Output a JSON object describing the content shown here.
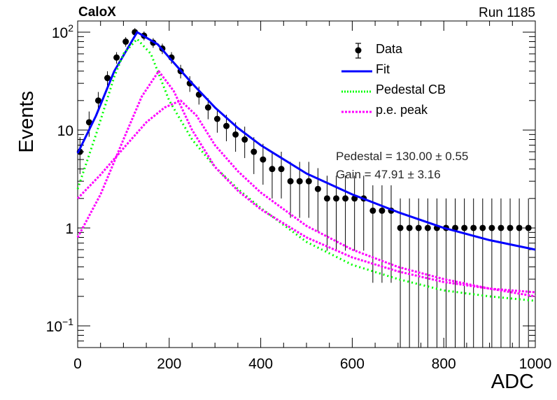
{
  "header": {
    "experiment": "CaloX",
    "run": "Run 1185"
  },
  "chart_data": {
    "type": "scatter",
    "xlabel": "ADC",
    "ylabel": "Events",
    "xlim": [
      0,
      1000
    ],
    "ylim": [
      0.06,
      130
    ],
    "log_y": true,
    "x_ticks": [
      0,
      200,
      400,
      600,
      800,
      1000
    ],
    "y_ticks": [
      {
        "value": 0.1,
        "mantissa": "10",
        "exponent": "−1"
      },
      {
        "value": 1,
        "mantissa": "1",
        "exponent": ""
      },
      {
        "value": 10,
        "mantissa": "10",
        "exponent": ""
      },
      {
        "value": 100,
        "mantissa": "10",
        "exponent": "2"
      }
    ],
    "legend_position": "top-right",
    "legend": [
      {
        "label": "Data",
        "style": "marker"
      },
      {
        "label": "Fit",
        "style": "solid",
        "color": "#0000ff"
      },
      {
        "label": "Pedestal CB",
        "style": "dotted",
        "color": "#00ff00"
      },
      {
        "label": "p.e. peak",
        "style": "dotted",
        "color": "#ff00ff"
      }
    ],
    "stats": [
      "Pedestal = 130.00 ± 0.55",
      "Gain = 47.91 ± 3.16"
    ],
    "data_points": {
      "x": [
        5,
        25,
        45,
        65,
        85,
        105,
        125,
        145,
        165,
        185,
        205,
        225,
        245,
        265,
        285,
        305,
        325,
        345,
        365,
        385,
        405,
        425,
        445,
        465,
        485,
        505,
        525,
        545,
        565,
        585,
        605,
        625,
        645,
        665,
        685,
        705,
        725,
        745,
        765,
        785,
        805,
        825,
        845,
        865,
        885,
        905,
        925,
        945,
        965,
        985
      ],
      "y": [
        6,
        12,
        20,
        34,
        55,
        80,
        100,
        92,
        78,
        68,
        55,
        40,
        30,
        23,
        17,
        13,
        11,
        9,
        8,
        6,
        5,
        4,
        4,
        3,
        3,
        3,
        2.5,
        2,
        2,
        2,
        2,
        2,
        1.5,
        1.5,
        1.5,
        1,
        1,
        1,
        1,
        1,
        1,
        1,
        1,
        1,
        1,
        1,
        1,
        1,
        1,
        1
      ]
    },
    "series": [
      {
        "name": "Fit",
        "color": "#0000ff",
        "x": [
          0,
          40,
          80,
          130,
          175,
          200,
          250,
          300,
          350,
          400,
          500,
          600,
          700,
          800,
          900,
          1000
        ],
        "y": [
          5.8,
          14,
          40,
          100,
          75,
          55,
          30,
          17,
          10.5,
          7,
          3.6,
          2.2,
          1.45,
          1.0,
          0.75,
          0.6
        ]
      },
      {
        "name": "Pedestal CB",
        "color": "#00ff00",
        "x": [
          0,
          40,
          80,
          100,
          130,
          160,
          200,
          250,
          300,
          350,
          400,
          500,
          600,
          700,
          800,
          900,
          1000
        ],
        "y": [
          2.5,
          9,
          35,
          60,
          85,
          60,
          20,
          8,
          4.2,
          2.5,
          1.6,
          0.72,
          0.42,
          0.3,
          0.23,
          0.2,
          0.18
        ]
      },
      {
        "name": "p.e. peak",
        "color": "#ff00ff",
        "x": [
          0,
          50,
          100,
          140,
          177,
          210,
          250,
          300,
          350,
          400,
          500,
          600,
          700,
          800,
          900,
          1000
        ],
        "y": [
          0.8,
          2.2,
          8,
          22,
          40,
          25,
          10,
          4.2,
          2.4,
          1.55,
          0.8,
          0.5,
          0.36,
          0.28,
          0.24,
          0.22
        ]
      },
      {
        "name": "p.e. peak",
        "color": "#ff00ff",
        "x": [
          0,
          50,
          100,
          150,
          190,
          225,
          260,
          300,
          350,
          400,
          500,
          600,
          700,
          800,
          900,
          1000
        ],
        "y": [
          2,
          3.5,
          6.5,
          12,
          17,
          20,
          14,
          7,
          3.8,
          2.3,
          1.05,
          0.6,
          0.4,
          0.3,
          0.24,
          0.2
        ]
      }
    ]
  }
}
